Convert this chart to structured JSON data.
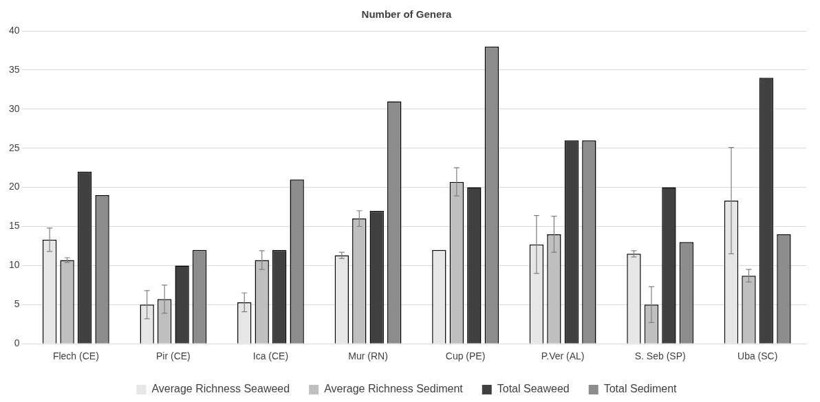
{
  "chart_data": {
    "type": "bar",
    "title": "Number of Genera",
    "categories": [
      "Flech (CE)",
      "Pir (CE)",
      "Ica (CE)",
      "Mur (RN)",
      "Cup (PE)",
      "P.Ver (AL)",
      "S. Seb (SP)",
      "Uba (SC)"
    ],
    "series": [
      {
        "name": "Average Richness Seaweed",
        "color": "#e6e6e6",
        "values": [
          13.3,
          5,
          5.3,
          11.3,
          12,
          12.7,
          11.5,
          18.3
        ],
        "errors": [
          1.5,
          1.8,
          1.2,
          0.4,
          null,
          3.7,
          0.4,
          6.8
        ]
      },
      {
        "name": "Average Richness Sediment",
        "color": "#bfbfbf",
        "values": [
          10.7,
          5.7,
          10.7,
          16,
          20.7,
          14,
          5,
          8.7
        ],
        "errors": [
          0.3,
          1.8,
          1.2,
          1,
          1.8,
          2.3,
          2.3,
          0.8
        ]
      },
      {
        "name": "Total Seaweed",
        "color": "#404040",
        "values": [
          22,
          10,
          12,
          17,
          20,
          26,
          20,
          34
        ]
      },
      {
        "name": "Total Sediment",
        "color": "#8c8c8c",
        "values": [
          19,
          12,
          21,
          31,
          38,
          26,
          13,
          14
        ]
      }
    ],
    "ylim": [
      0,
      40
    ],
    "yticks": [
      0,
      5,
      10,
      15,
      20,
      25,
      30,
      35,
      40
    ],
    "grid": "y",
    "legend": "bottom"
  }
}
